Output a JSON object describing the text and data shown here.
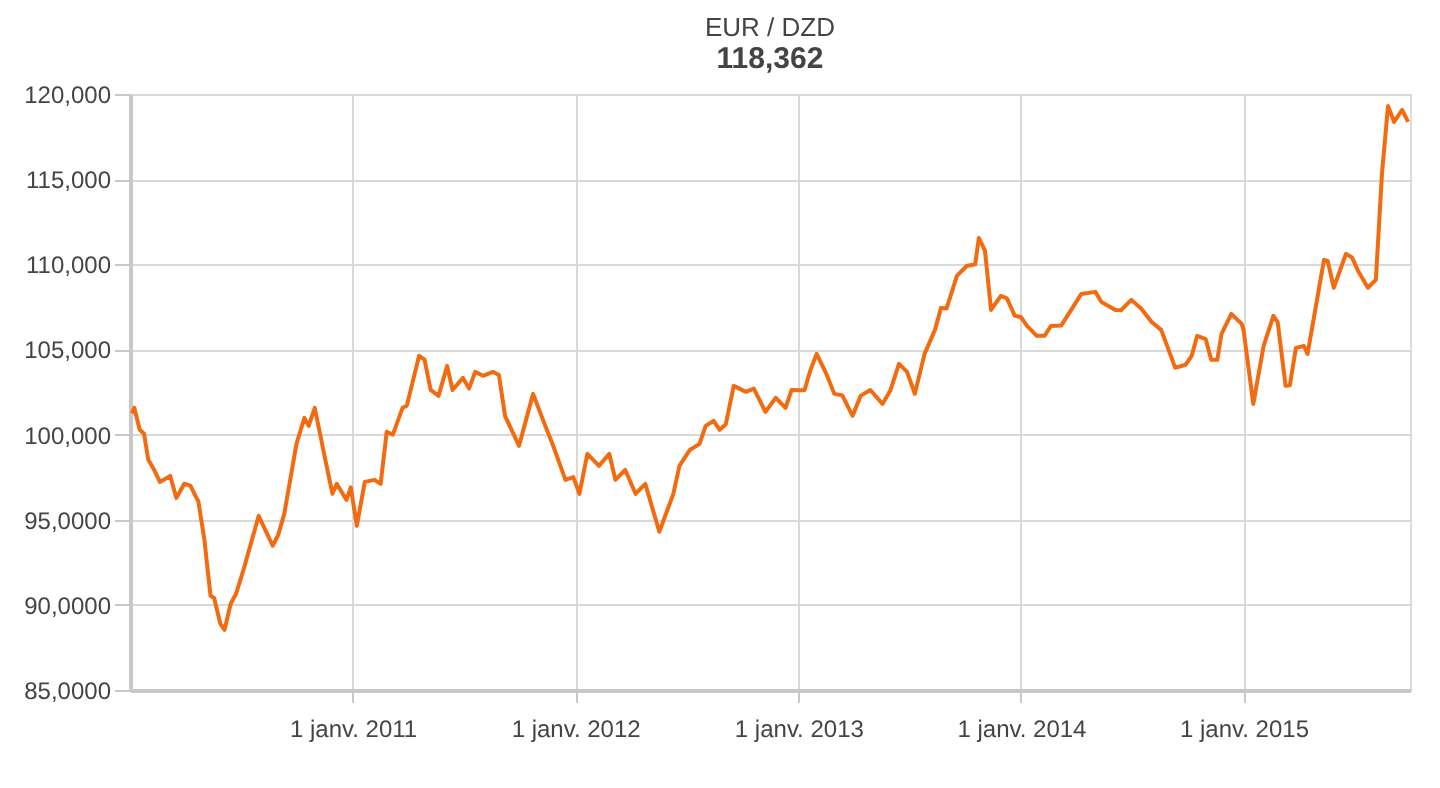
{
  "chart_data": {
    "type": "line",
    "title": "EUR / DZD",
    "subtitle": "118,362",
    "x": [
      "2010-01-04",
      "2010-01-08",
      "2010-01-17",
      "2010-01-24",
      "2010-01-31",
      "2010-02-09",
      "2010-02-19",
      "2010-03-08",
      "2010-03-18",
      "2010-03-31",
      "2010-04-10",
      "2010-04-20",
      "2010-04-23",
      "2010-05-03",
      "2010-05-13",
      "2010-05-19",
      "2010-05-29",
      "2010-06-05",
      "2010-06-15",
      "2010-06-24",
      "2010-07-08",
      "2010-07-31",
      "2010-08-23",
      "2010-09-01",
      "2010-09-11",
      "2010-10-01",
      "2010-10-14",
      "2010-10-21",
      "2010-10-31",
      "2010-11-16",
      "2010-11-29",
      "2010-12-06",
      "2010-12-22",
      "2010-12-29",
      "2011-01-08",
      "2011-01-21",
      "2011-02-06",
      "2011-02-16",
      "2011-02-26",
      "2011-03-08",
      "2011-03-24",
      "2011-03-31",
      "2011-04-20",
      "2011-04-29",
      "2011-05-09",
      "2011-05-22",
      "2011-06-05",
      "2011-06-14",
      "2011-07-01",
      "2011-07-11",
      "2011-07-21",
      "2011-08-03",
      "2011-08-19",
      "2011-08-29",
      "2011-09-08",
      "2011-10-01",
      "2011-10-24",
      "2011-11-13",
      "2011-11-26",
      "2011-12-16",
      "2011-12-29",
      "2012-01-08",
      "2012-01-21",
      "2012-02-09",
      "2012-02-26",
      "2012-03-07",
      "2012-03-23",
      "2012-04-09",
      "2012-04-25",
      "2012-05-18",
      "2012-06-10",
      "2012-06-20",
      "2012-07-07",
      "2012-07-23",
      "2012-08-02",
      "2012-08-15",
      "2012-08-25",
      "2012-09-04",
      "2012-09-17",
      "2012-10-07",
      "2012-10-20",
      "2012-11-08",
      "2012-11-25",
      "2012-12-11",
      "2012-12-21",
      "2013-01-11",
      "2013-01-21",
      "2013-01-31",
      "2013-02-16",
      "2013-03-01",
      "2013-03-14",
      "2013-03-31",
      "2013-04-13",
      "2013-04-29",
      "2013-05-19",
      "2013-06-01",
      "2013-06-15",
      "2013-06-28",
      "2013-07-11",
      "2013-07-27",
      "2013-08-13",
      "2013-08-23",
      "2013-09-01",
      "2013-09-18",
      "2013-10-04",
      "2013-10-18",
      "2013-10-24",
      "2013-11-03",
      "2013-11-13",
      "2013-11-29",
      "2013-12-09",
      "2013-12-22",
      "2014-01-01",
      "2014-01-11",
      "2014-01-27",
      "2014-02-09",
      "2014-02-19",
      "2014-03-08",
      "2014-04-10",
      "2014-05-03",
      "2014-05-13",
      "2014-06-05",
      "2014-06-14",
      "2014-07-01",
      "2014-07-17",
      "2014-08-03",
      "2014-08-19",
      "2014-09-11",
      "2014-09-28",
      "2014-10-08",
      "2014-10-17",
      "2014-10-31",
      "2014-11-09",
      "2014-11-19",
      "2014-11-26",
      "2014-12-12",
      "2014-12-29",
      "2015-01-01",
      "2015-01-17",
      "2015-02-03",
      "2015-02-19",
      "2015-02-26",
      "2015-03-11",
      "2015-03-18",
      "2015-03-28",
      "2015-04-10",
      "2015-04-16",
      "2015-05-13",
      "2015-05-19",
      "2015-05-29",
      "2015-06-18",
      "2015-06-28",
      "2015-07-07",
      "2015-07-24",
      "2015-08-06",
      "2015-08-16",
      "2015-08-26",
      "2015-09-05",
      "2015-09-18",
      "2015-09-28"
    ],
    "series": [
      {
        "color": "#f26b10",
        "values": [
          101250,
          101570,
          100280,
          100050,
          98520,
          97970,
          97220,
          97570,
          96280,
          97110,
          97000,
          96280,
          96100,
          93820,
          90530,
          90400,
          88900,
          88530,
          90050,
          90650,
          92290,
          95230,
          93470,
          94100,
          95340,
          99450,
          100980,
          100510,
          101570,
          98750,
          96520,
          97110,
          96160,
          96900,
          94640,
          97220,
          97340,
          97100,
          100160,
          100000,
          101570,
          101700,
          104620,
          104400,
          102620,
          102270,
          104030,
          102620,
          103330,
          102700,
          103680,
          103450,
          103680,
          103500,
          101100,
          99340,
          102390,
          100510,
          99340,
          97340,
          97500,
          96520,
          98870,
          98160,
          98870,
          97340,
          97930,
          96520,
          97110,
          94290,
          96520,
          98160,
          99100,
          99450,
          100510,
          100800,
          100280,
          100600,
          102860,
          102510,
          102700,
          101330,
          102160,
          101570,
          102620,
          102600,
          103800,
          104740,
          103560,
          102390,
          102300,
          101100,
          102270,
          102620,
          101800,
          102600,
          104150,
          103700,
          102390,
          104740,
          106150,
          107440,
          107400,
          109320,
          109900,
          110000,
          111550,
          110800,
          107320,
          108140,
          108000,
          106970,
          106900,
          106380,
          105800,
          105800,
          106380,
          106400,
          108260,
          108380,
          107790,
          107320,
          107300,
          107910,
          107400,
          106620,
          106150,
          103920,
          104100,
          104620,
          105800,
          105600,
          104390,
          104390,
          105920,
          107090,
          106500,
          106150,
          101800,
          105210,
          106970,
          106600,
          102860,
          102900,
          105090,
          105200,
          104740,
          110260,
          110200,
          108620,
          110610,
          110400,
          109670,
          108620,
          109080,
          115300,
          119300,
          118360,
          119060,
          118362
        ]
      }
    ],
    "xlim": [
      "2010-01-01",
      "2015-10-01"
    ],
    "xticks": [
      {
        "value": "2011-01-01",
        "label": "1 janv. 2011"
      },
      {
        "value": "2012-01-01",
        "label": "1 janv. 2012"
      },
      {
        "value": "2013-01-01",
        "label": "1 janv. 2013"
      },
      {
        "value": "2014-01-01",
        "label": "1 janv. 2014"
      },
      {
        "value": "2015-01-01",
        "label": "1 janv. 2015"
      }
    ],
    "ylim": [
      85000,
      120000
    ],
    "yticks": [
      {
        "value": 85000,
        "label": "85,0000"
      },
      {
        "value": 90000,
        "label": "90,0000"
      },
      {
        "value": 95000,
        "label": "95,0000"
      },
      {
        "value": 100000,
        "label": "100,000"
      },
      {
        "value": 105000,
        "label": "105,000"
      },
      {
        "value": 110000,
        "label": "110,000"
      },
      {
        "value": 115000,
        "label": "115,000"
      },
      {
        "value": 120000,
        "label": "120,000"
      }
    ],
    "grid": true,
    "marker": "none",
    "line_style": "solid"
  }
}
